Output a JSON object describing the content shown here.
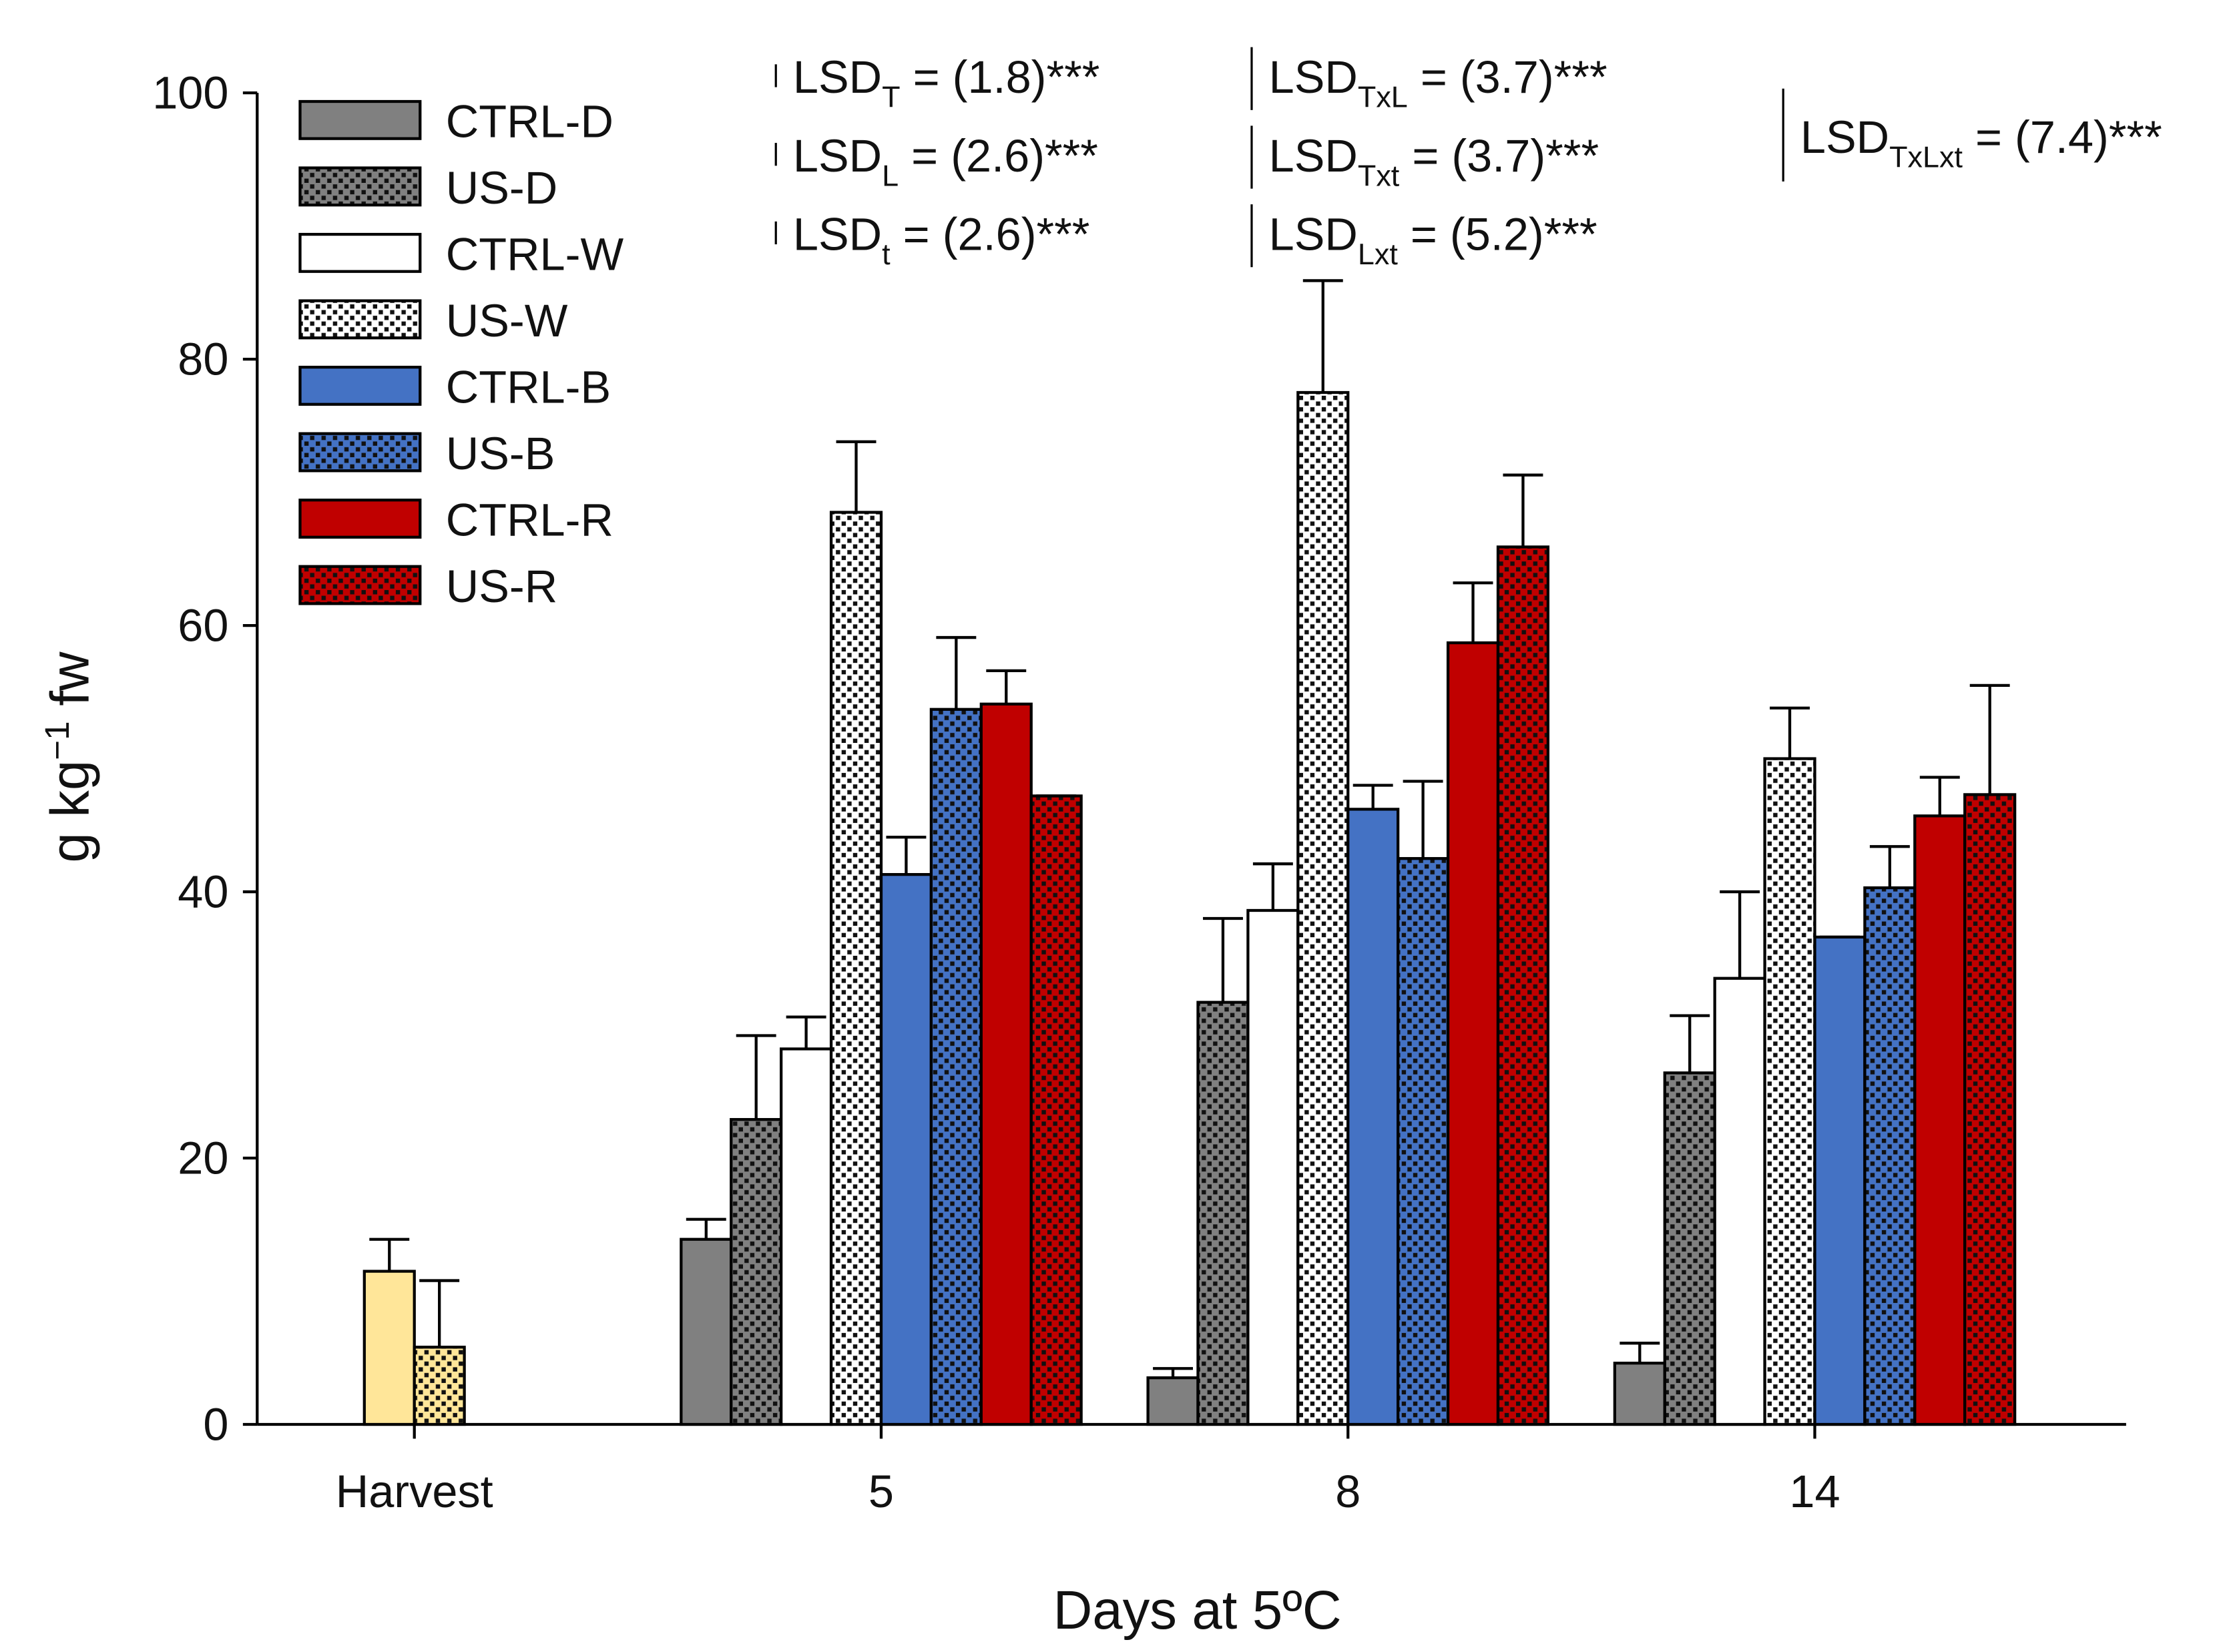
{
  "chart_data": {
    "type": "bar",
    "x_label": "Days at 5ºC",
    "y_label": {
      "before": "g kg",
      "sup": "−1",
      "after": " fw"
    },
    "categories": [
      "Harvest",
      "5",
      "8",
      "14"
    ],
    "ylim": [
      0,
      100
    ],
    "yticks": [
      0,
      20,
      40,
      60,
      80,
      100
    ],
    "series": [
      {
        "name": "CTRL-D",
        "color": "#808080",
        "pattern": "solid",
        "values": [
          null,
          13.9,
          3.5,
          4.6
        ],
        "errors": [
          null,
          1.5,
          0.7,
          1.5
        ]
      },
      {
        "name": "US-D",
        "color": "#808080",
        "pattern": "dotted",
        "values": [
          null,
          22.9,
          31.7,
          26.4
        ],
        "errors": [
          null,
          6.3,
          6.3,
          4.3
        ]
      },
      {
        "name": "CTRL-W",
        "color": "#ffffff",
        "pattern": "solid",
        "values": [
          null,
          28.2,
          38.6,
          33.5
        ],
        "errors": [
          null,
          2.4,
          3.5,
          6.5
        ]
      },
      {
        "name": "US-W",
        "color": "#ffffff",
        "pattern": "dotted",
        "values": [
          null,
          68.5,
          77.5,
          50.0
        ],
        "errors": [
          null,
          5.3,
          8.4,
          3.8
        ]
      },
      {
        "name": "CTRL-B",
        "color": "#4472c4",
        "pattern": "solid",
        "values": [
          null,
          41.3,
          46.2,
          36.6
        ],
        "errors": [
          null,
          2.8,
          1.8,
          0
        ]
      },
      {
        "name": "US-B",
        "color": "#4472c4",
        "pattern": "dotted",
        "values": [
          null,
          53.7,
          42.5,
          40.3
        ],
        "errors": [
          null,
          5.4,
          5.8,
          3.1
        ]
      },
      {
        "name": "CTRL-R",
        "color": "#c00000",
        "pattern": "solid",
        "values": [
          null,
          54.1,
          58.7,
          45.7
        ],
        "errors": [
          null,
          2.5,
          4.5,
          2.9
        ]
      },
      {
        "name": "US-R",
        "color": "#c00000",
        "pattern": "dotted",
        "values": [
          null,
          47.2,
          65.9,
          47.3
        ],
        "errors": [
          null,
          0,
          5.4,
          8.2
        ]
      },
      {
        "color": "#ffe699",
        "pattern": "solid",
        "values": [
          11.5,
          null,
          null,
          null
        ],
        "errors": [
          2.4,
          null,
          null,
          null
        ]
      },
      {
        "color": "#ffe699",
        "pattern": "dotted",
        "values": [
          5.8,
          null,
          null,
          null
        ],
        "errors": [
          5.0,
          null,
          null,
          null
        ]
      }
    ],
    "annotations": [
      {
        "main": "LSD",
        "sub": "T",
        "rest": " = (1.8)***"
      },
      {
        "main": "LSD",
        "sub": "L",
        "rest": " = (2.6)***"
      },
      {
        "main": "LSD",
        "sub": "t",
        "rest": " = (2.6)***"
      },
      {
        "main": "LSD",
        "sub": "TxL",
        "rest": " = (3.7)***"
      },
      {
        "main": "LSD",
        "sub": "Txt",
        "rest": " = (3.7)***"
      },
      {
        "main": "LSD",
        "sub": "Lxt",
        "rest": " = (5.2)***"
      },
      {
        "main": "LSD",
        "sub": "TxLxt",
        "rest": " = (7.4)***"
      }
    ]
  }
}
